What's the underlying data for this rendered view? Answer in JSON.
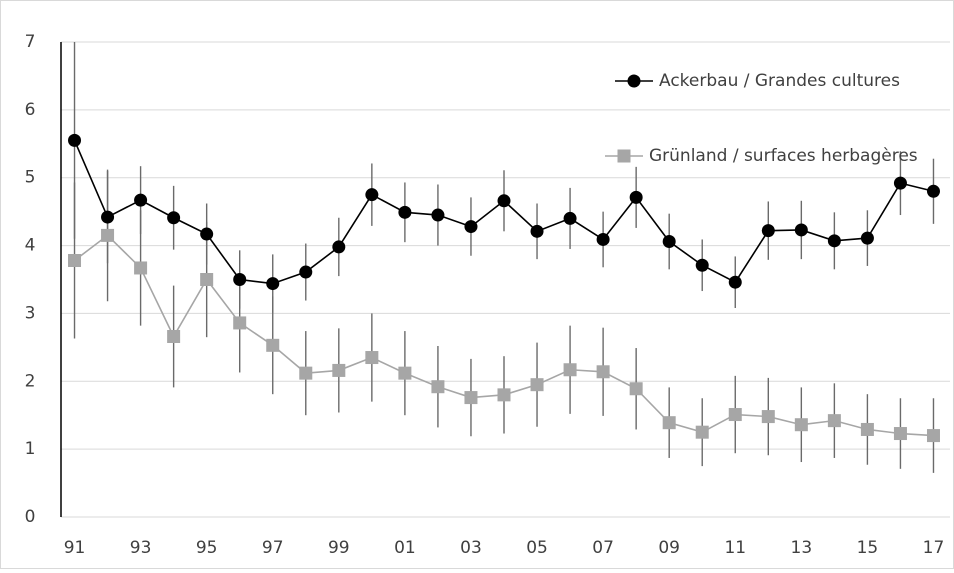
{
  "chart_data": {
    "type": "line",
    "categories": [
      "91",
      null,
      "93",
      null,
      "95",
      null,
      "97",
      null,
      "99",
      null,
      "01",
      null,
      "03",
      null,
      "05",
      null,
      "07",
      null,
      "09",
      null,
      "11",
      null,
      "13",
      null,
      "15",
      null,
      "17"
    ],
    "series": [
      {
        "name": "Ackerbau / Grandes cultures",
        "color": "#000000",
        "marker": "circle",
        "values": [
          5.55,
          4.42,
          4.67,
          4.41,
          4.17,
          3.5,
          3.44,
          3.61,
          3.98,
          4.75,
          4.49,
          4.45,
          4.28,
          4.66,
          4.21,
          4.4,
          4.09,
          4.71,
          4.06,
          3.71,
          3.46,
          4.22,
          4.23,
          4.07,
          4.11,
          4.92,
          4.8
        ],
        "errors": [
          1.45,
          0.68,
          0.5,
          0.47,
          0.45,
          0.43,
          0.43,
          0.42,
          0.43,
          0.46,
          0.44,
          0.45,
          0.43,
          0.45,
          0.41,
          0.45,
          0.41,
          0.45,
          0.41,
          0.38,
          0.38,
          0.43,
          0.43,
          0.42,
          0.41,
          0.47,
          0.48
        ]
      },
      {
        "name": "Grünland / surfaces herbagères",
        "color": "#a6a6a6",
        "marker": "square",
        "values": [
          3.78,
          4.15,
          3.67,
          2.66,
          3.5,
          2.86,
          2.53,
          2.12,
          2.16,
          2.35,
          2.12,
          1.92,
          1.76,
          1.8,
          1.95,
          2.17,
          2.14,
          1.89,
          1.39,
          1.25,
          1.51,
          1.48,
          1.36,
          1.42,
          1.29,
          1.23,
          1.2
        ],
        "errors": [
          1.15,
          0.97,
          0.85,
          0.75,
          0.85,
          0.73,
          0.72,
          0.62,
          0.62,
          0.65,
          0.62,
          0.6,
          0.57,
          0.57,
          0.62,
          0.65,
          0.65,
          0.6,
          0.52,
          0.5,
          0.57,
          0.57,
          0.55,
          0.55,
          0.52,
          0.52,
          0.55
        ]
      }
    ],
    "ylim": [
      0,
      7
    ],
    "yticks": [
      0,
      1,
      2,
      3,
      4,
      5,
      6,
      7
    ],
    "grid": true,
    "legend": "upper right"
  }
}
